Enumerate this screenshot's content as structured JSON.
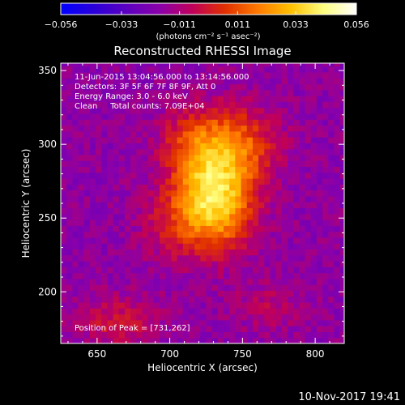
{
  "chart_data": {
    "type": "heatmap",
    "title": "Reconstructed RHESSI Image",
    "xlabel": "Heliocentric X (arcsec)",
    "ylabel": "Heliocentric Y (arcsec)",
    "xlim": [
      625,
      820
    ],
    "ylim": [
      165,
      355
    ],
    "xticks": [
      650,
      700,
      750,
      800
    ],
    "yticks": [
      200,
      250,
      300,
      350
    ],
    "x_tick_labels": [
      "650",
      "700",
      "750",
      "800"
    ],
    "y_tick_labels": [
      "200",
      "250",
      "300",
      "350"
    ],
    "colorbar": {
      "ticks": [
        -0.056,
        -0.033,
        -0.011,
        0.011,
        0.033,
        0.056
      ],
      "tick_labels": [
        "−0.056",
        "−0.033",
        "−0.011",
        "0.011",
        "0.033",
        "0.056"
      ],
      "unit_label": "(photons cm⁻² s⁻¹ asec⁻²)",
      "colors": [
        "#0000ff",
        "#2a00d8",
        "#5c00c0",
        "#8a00aa",
        "#c0005a",
        "#e03000",
        "#ff7a00",
        "#ffc000",
        "#ffff80",
        "#ffffff"
      ]
    },
    "annotations": [
      "11-Jun-2015 13:04:56.000 to 13:14:56.000",
      "Detectors: 3F 5F 6F 7F 8F 9F, Att 0",
      "Energy Range: 3.0 - 6.0 keV",
      "Clean     Total counts: 7.09E+04"
    ],
    "peak_label": "Position of Peak = [731,262]",
    "peak": [
      731,
      262
    ],
    "sources": [
      {
        "x": 731,
        "y": 262,
        "sx": 18,
        "sy": 22,
        "amp": 0.056
      },
      {
        "x": 745,
        "y": 300,
        "sx": 20,
        "sy": 18,
        "amp": 0.03
      },
      {
        "x": 715,
        "y": 300,
        "sx": 16,
        "sy": 18,
        "amp": 0.02
      },
      {
        "x": 700,
        "y": 245,
        "sx": 15,
        "sy": 18,
        "amp": 0.014
      },
      {
        "x": 665,
        "y": 180,
        "sx": 20,
        "sy": 12,
        "amp": 0.016
      },
      {
        "x": 770,
        "y": 190,
        "sx": 18,
        "sy": 12,
        "amp": 0.01
      }
    ],
    "background": -0.018,
    "footer_date": "10-Nov-2017 19:41"
  }
}
